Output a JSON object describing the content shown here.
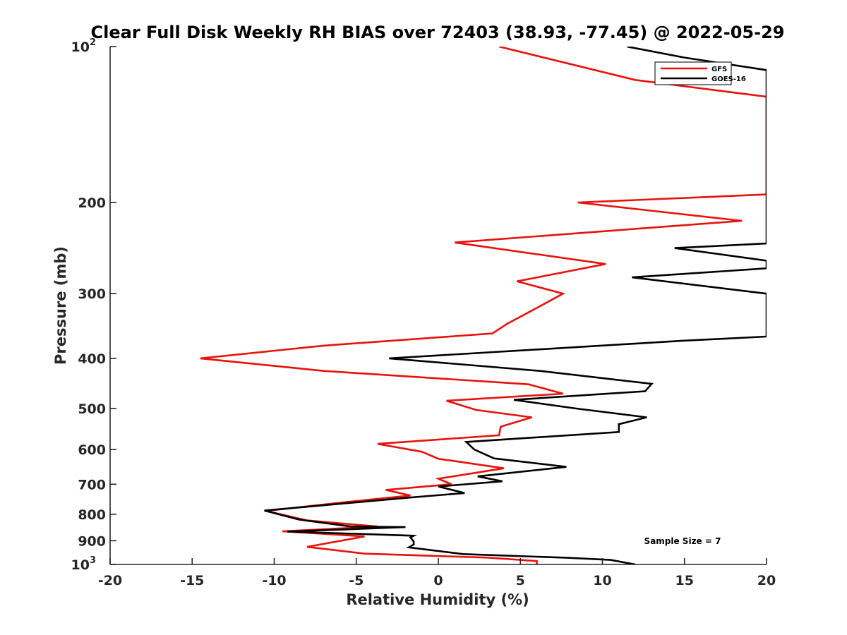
{
  "chart_data": {
    "type": "line",
    "title": "Clear Full Disk Weekly RH BIAS over 72403 (38.93, -77.45) @ 2022-05-29",
    "xlabel": "Relative Humidity (%)",
    "ylabel": "Pressure (mb)",
    "xlim": [
      -20,
      20
    ],
    "ylim": [
      100,
      1000
    ],
    "y_scale": "log",
    "y_reversed": true,
    "x_ticks": [
      "-20",
      "-15",
      "-10",
      "-5",
      "0",
      "5",
      "10",
      "15",
      "20"
    ],
    "y_ticks": [
      {
        "value": 100,
        "base": "10",
        "exp": "2"
      },
      {
        "value": 200,
        "label": "200"
      },
      {
        "value": 300,
        "label": "300"
      },
      {
        "value": 400,
        "label": "400"
      },
      {
        "value": 500,
        "label": "500"
      },
      {
        "value": 600,
        "label": "600"
      },
      {
        "value": 700,
        "label": "700"
      },
      {
        "value": 800,
        "label": "800"
      },
      {
        "value": 900,
        "label": "900"
      },
      {
        "value": 1000,
        "base": "10",
        "exp": "3"
      }
    ],
    "grid": false,
    "legend_position": "top-right",
    "annotation": "Sample Size = 7",
    "series": [
      {
        "name": "GFS",
        "color": "#e8120c",
        "points": [
          [
            3.7,
            100
          ],
          [
            12.0,
            116
          ],
          [
            20.0,
            125
          ],
          [
            20.0,
            193
          ],
          [
            8.5,
            200
          ],
          [
            18.5,
            217
          ],
          [
            1.0,
            239
          ],
          [
            10.2,
            263
          ],
          [
            4.8,
            284
          ],
          [
            7.6,
            300
          ],
          [
            5.5,
            326
          ],
          [
            4.2,
            343
          ],
          [
            3.3,
            358
          ],
          [
            -7.0,
            378
          ],
          [
            -14.5,
            400
          ],
          [
            -7.0,
            423
          ],
          [
            5.5,
            449
          ],
          [
            7.6,
            468
          ],
          [
            0.5,
            483
          ],
          [
            2.3,
            503
          ],
          [
            5.7,
            520
          ],
          [
            3.8,
            542
          ],
          [
            3.7,
            563
          ],
          [
            -3.7,
            585
          ],
          [
            -1.0,
            606
          ],
          [
            0.0,
            625
          ],
          [
            4.0,
            652
          ],
          [
            0.0,
            683
          ],
          [
            0.8,
            700
          ],
          [
            -3.2,
            718
          ],
          [
            -1.7,
            736
          ],
          [
            -6.0,
            760
          ],
          [
            -10.5,
            788
          ],
          [
            -8.0,
            822
          ],
          [
            -3.7,
            845
          ],
          [
            -9.5,
            863
          ],
          [
            -4.5,
            883
          ],
          [
            -8.0,
            925
          ],
          [
            -4.5,
            953
          ],
          [
            3.0,
            970
          ],
          [
            6.0,
            985
          ],
          [
            6.0,
            1000
          ]
        ]
      },
      {
        "name": "GOES-16",
        "color": "#000000",
        "points": [
          [
            11.5,
            100
          ],
          [
            15.0,
            105
          ],
          [
            20.0,
            111
          ],
          [
            20.0,
            240
          ],
          [
            14.4,
            245
          ],
          [
            20.0,
            259
          ],
          [
            20.0,
            268
          ],
          [
            11.8,
            279
          ],
          [
            20.0,
            300
          ],
          [
            20.0,
            363
          ],
          [
            14.8,
            370
          ],
          [
            -3.0,
            400
          ],
          [
            6.2,
            423
          ],
          [
            13.0,
            448
          ],
          [
            12.6,
            463
          ],
          [
            4.6,
            481
          ],
          [
            8.4,
            500
          ],
          [
            12.7,
            520
          ],
          [
            11.0,
            536
          ],
          [
            11.0,
            555
          ],
          [
            1.7,
            580
          ],
          [
            2.2,
            600
          ],
          [
            3.4,
            624
          ],
          [
            7.8,
            648
          ],
          [
            2.4,
            676
          ],
          [
            3.9,
            691
          ],
          [
            0.0,
            707
          ],
          [
            1.6,
            728
          ],
          [
            -1.8,
            743
          ],
          [
            -10.6,
            787
          ],
          [
            -8.5,
            819
          ],
          [
            -5.3,
            845
          ],
          [
            -2.0,
            847
          ],
          [
            -9.2,
            864
          ],
          [
            -1.5,
            880
          ],
          [
            -1.7,
            887
          ],
          [
            -1.5,
            903
          ],
          [
            -1.5,
            915
          ],
          [
            -1.8,
            927
          ],
          [
            1.5,
            955
          ],
          [
            7.9,
            971
          ],
          [
            10.5,
            980
          ],
          [
            12.0,
            1000
          ]
        ]
      }
    ]
  }
}
